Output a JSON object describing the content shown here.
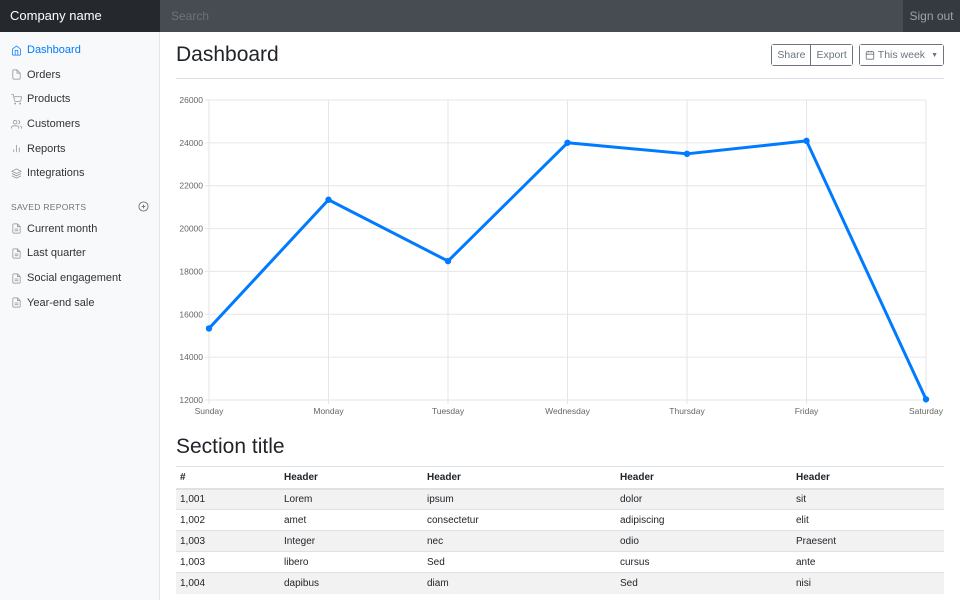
{
  "topbar": {
    "brand": "Company name",
    "search_placeholder": "Search",
    "signout": "Sign out"
  },
  "sidebar": {
    "items": [
      {
        "label": "Dashboard",
        "icon": "home-icon",
        "active": true
      },
      {
        "label": "Orders",
        "icon": "file-icon"
      },
      {
        "label": "Products",
        "icon": "shopping-cart-icon"
      },
      {
        "label": "Customers",
        "icon": "users-icon"
      },
      {
        "label": "Reports",
        "icon": "bar-chart-icon"
      },
      {
        "label": "Integrations",
        "icon": "layers-icon"
      }
    ],
    "saved_heading": "SAVED REPORTS",
    "saved": [
      {
        "label": "Current month"
      },
      {
        "label": "Last quarter"
      },
      {
        "label": "Social engagement"
      },
      {
        "label": "Year-end sale"
      }
    ]
  },
  "header": {
    "title": "Dashboard",
    "share": "Share",
    "export": "Export",
    "period": "This week"
  },
  "chart_data": {
    "type": "line",
    "categories": [
      "Sunday",
      "Monday",
      "Tuesday",
      "Wednesday",
      "Thursday",
      "Friday",
      "Saturday"
    ],
    "values": [
      15339,
      21345,
      18483,
      24003,
      23489,
      24092,
      12034
    ],
    "ylim": [
      12000,
      26000
    ],
    "yticks": [
      "12000",
      "14000",
      "16000",
      "18000",
      "20000",
      "22000",
      "24000",
      "26000"
    ],
    "grid": true,
    "color": "#007bff"
  },
  "section": {
    "title": "Section title",
    "headers": [
      "#",
      "Header",
      "Header",
      "Header",
      "Header"
    ],
    "rows": [
      [
        "1,001",
        "Lorem",
        "ipsum",
        "dolor",
        "sit"
      ],
      [
        "1,002",
        "amet",
        "consectetur",
        "adipiscing",
        "elit"
      ],
      [
        "1,003",
        "Integer",
        "nec",
        "odio",
        "Praesent"
      ],
      [
        "1,003",
        "libero",
        "Sed",
        "cursus",
        "ante"
      ],
      [
        "1,004",
        "dapibus",
        "diam",
        "Sed",
        "nisi"
      ]
    ]
  }
}
